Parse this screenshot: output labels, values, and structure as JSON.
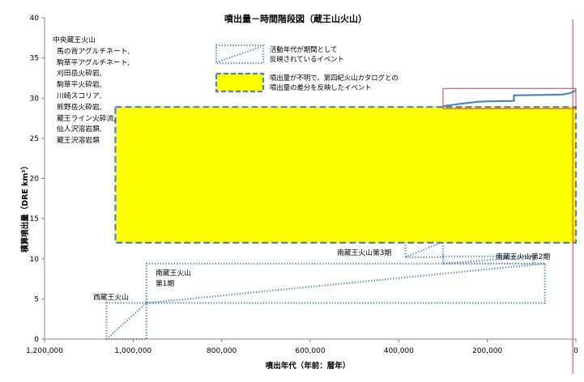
{
  "chart_data": {
    "type": "line",
    "title": "噴出量－時間階段図（蔵王山火山）",
    "xlabel": "噴出年代（年前：暦年）",
    "ylabel": "積算噴出量（DRE km³）",
    "xlim": [
      1200000,
      0
    ],
    "ylim": [
      0,
      40
    ],
    "x_reversed": true,
    "grid": false,
    "x_ticks": [
      1200000,
      1000000,
      800000,
      600000,
      400000,
      200000,
      0
    ],
    "x_tick_labels": [
      "1,200,000",
      "1,000,000",
      "800,000",
      "600,000",
      "400,000",
      "200,000",
      "0"
    ],
    "y_ticks": [
      0,
      5,
      10,
      15,
      20,
      25,
      30,
      35,
      40
    ],
    "y_tick_labels": [
      "0",
      "5",
      "10",
      "15",
      "20",
      "25",
      "30",
      "35",
      "40"
    ],
    "series": [
      {
        "name": "",
        "color": "#4f81bd",
        "style": "step",
        "points": [
          [
            300000,
            29.0
          ],
          [
            260000,
            29.3
          ],
          [
            220000,
            29.55
          ],
          [
            200000,
            29.6
          ],
          [
            140000,
            29.65
          ],
          [
            140000,
            30.35
          ],
          [
            80000,
            30.4
          ],
          [
            30000,
            30.45
          ],
          [
            15000,
            30.6
          ],
          [
            5000,
            30.8
          ],
          [
            0,
            31.0
          ]
        ]
      }
    ],
    "legend": [
      {
        "label": "活動年代が期間として反映されているイベント",
        "symbol": "dotted-box-diagonal"
      },
      {
        "label": "噴出量が不明で、第四紀火山カタログとの噴出量の差分を反映したイベント",
        "symbol": "yellow-dashed-box"
      }
    ],
    "annotations": {
      "central_list_title": "中央蔵王火山",
      "central_list_items": [
        "馬の背アグルチネート,",
        "駒草平アグルチネート,",
        "刈田岳火砕岩,",
        "駒草平火砕岩,",
        "川崎スコリア,",
        "熊野岳火砕岩,",
        "蔵王ライン火砕流,",
        "仙人沢溶岩類,",
        "蔵王沢溶岩類"
      ],
      "west_label": "西蔵王火山",
      "south1_label_line1": "南蔵王火山",
      "south1_label_line2": "第1期",
      "south2_label": "南蔵王火山第2期",
      "south3_label": "南蔵王火山第3期"
    },
    "event_boxes": [
      {
        "name": "west-zao",
        "x_range": [
          1060000,
          970000
        ],
        "y_range": [
          0,
          4.5
        ],
        "style": "dotted"
      },
      {
        "name": "south-zao-1",
        "x_range": [
          970000,
          70000
        ],
        "y_range": [
          4.5,
          9.4
        ],
        "style": "dotted"
      },
      {
        "name": "south-zao-2",
        "x_range": [
          300000,
          95000
        ],
        "y_range": [
          9.4,
          10.3
        ],
        "style": "dotted"
      },
      {
        "name": "south-zao-3",
        "x_range": [
          385000,
          300000
        ],
        "y_range": [
          10.2,
          12.1
        ],
        "style": "dotted"
      },
      {
        "name": "yellow-gap",
        "x_range": [
          1040000,
          0
        ],
        "y_range": [
          12.0,
          28.9
        ],
        "style": "dashed-yellow"
      }
    ],
    "highlight_box": {
      "x_range": [
        300000,
        0
      ],
      "y_range": [
        28.7,
        31.2
      ],
      "color": "#e0393e"
    },
    "reference_line": {
      "x": 7000,
      "color": "#e0393e"
    }
  }
}
